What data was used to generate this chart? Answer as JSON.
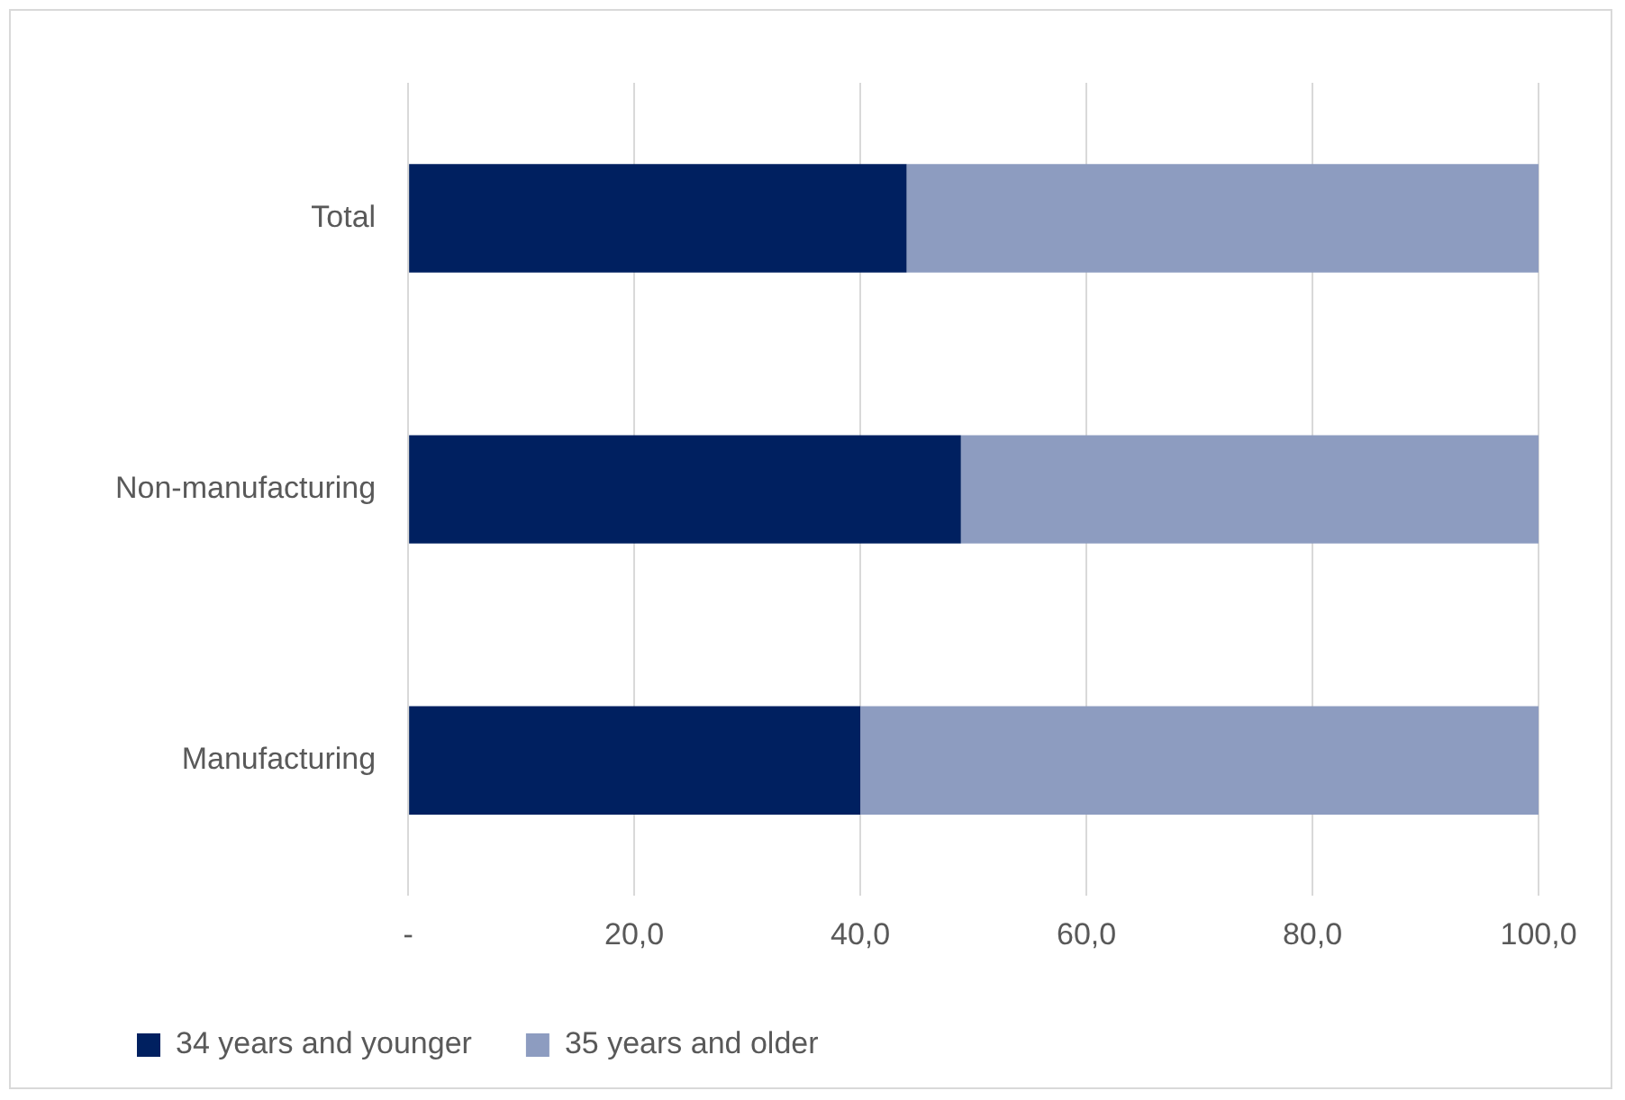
{
  "chart_data": {
    "type": "bar",
    "orientation": "horizontal",
    "stacked": true,
    "categories": [
      "Total",
      "Non-manufacturing",
      "Manufacturing"
    ],
    "series": [
      {
        "name": "34 years and younger",
        "color": "#002060",
        "values": [
          44.1,
          48.9,
          40.0
        ]
      },
      {
        "name": "35 years and older",
        "color": "#8d9cc0",
        "values": [
          55.9,
          51.1,
          60.0
        ]
      }
    ],
    "xlim": [
      0,
      100
    ],
    "xticks": [
      {
        "value": 0,
        "label": "-"
      },
      {
        "value": 20,
        "label": "20,0"
      },
      {
        "value": 40,
        "label": "40,0"
      },
      {
        "value": 60,
        "label": "60,0"
      },
      {
        "value": 80,
        "label": "80,0"
      },
      {
        "value": 100,
        "label": "100,0"
      }
    ],
    "grid": "x",
    "legend": "bottom left"
  }
}
